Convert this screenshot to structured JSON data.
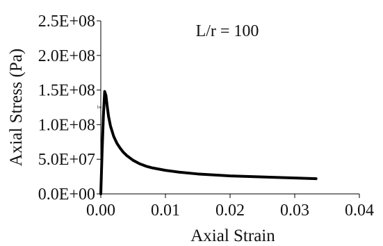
{
  "chart_data": {
    "type": "line",
    "title": "",
    "xlabel": "Axial Strain",
    "ylabel": "Axial Stress (Pa)",
    "xlim": [
      0,
      0.04
    ],
    "ylim": [
      0,
      250000000
    ],
    "x_ticks": [
      0,
      0.01,
      0.02,
      0.03,
      0.04
    ],
    "x_tick_labels": [
      "0.00",
      "0.01",
      "0.02",
      "0.03",
      "0.04"
    ],
    "y_ticks": [
      0,
      50000000,
      100000000,
      150000000,
      200000000,
      250000000
    ],
    "y_tick_labels": [
      "0.0E+00",
      "5.0E+07",
      "1.0E+08",
      "1.5E+08",
      "2.0E+08",
      "2.5E+08"
    ],
    "grid": false,
    "legend": "none",
    "annotations": [
      {
        "text": "L/r = 100"
      }
    ],
    "small_mark": "lre",
    "series": [
      {
        "color": "#000000",
        "x": [
          0.0,
          0.0002,
          0.0004,
          0.0006,
          0.0008,
          0.001,
          0.0012,
          0.0015,
          0.002,
          0.0025,
          0.003,
          0.0035,
          0.004,
          0.005,
          0.006,
          0.007,
          0.008,
          0.01,
          0.012,
          0.015,
          0.02,
          0.025,
          0.03,
          0.0333
        ],
        "y": [
          0,
          60000000,
          112000000,
          148000000,
          142000000,
          126000000,
          112000000,
          98000000,
          83000000,
          73000000,
          66000000,
          60000000,
          55500000,
          48500000,
          43500000,
          40000000,
          37500000,
          34000000,
          31500000,
          28800000,
          26000000,
          24500000,
          23000000,
          22000000
        ]
      }
    ]
  }
}
